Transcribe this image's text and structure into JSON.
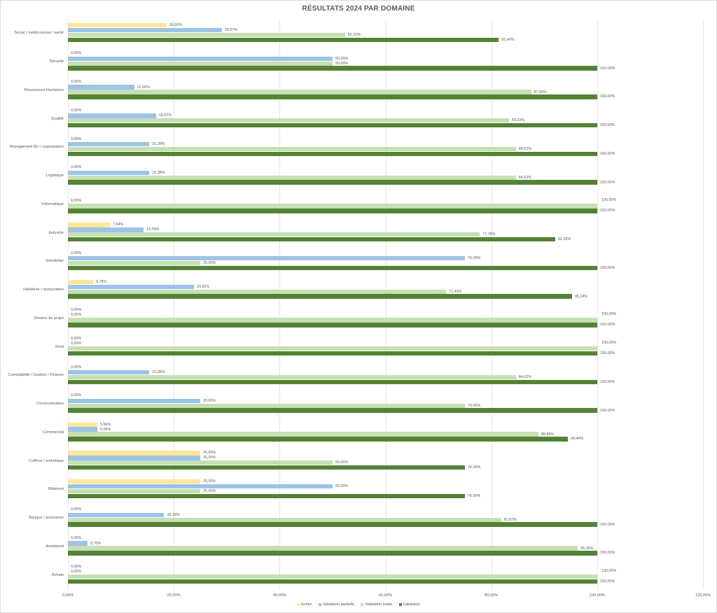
{
  "chart_data": {
    "type": "bar",
    "orientation": "horizontal",
    "title": "RÉSULTATS 2024 PAR DOMAINE",
    "xlabel": "",
    "ylabel": "",
    "xlim": [
      0,
      120
    ],
    "x_ticks": [
      "0,00%",
      "20,00%",
      "40,00%",
      "60,00%",
      "80,00%",
      "100,00%",
      "120,00%"
    ],
    "grid": true,
    "legend_position": "bottom",
    "categories": [
      "Social / médicosocial / santé",
      "Sécurité",
      "Ressources Humaines",
      "Qualité",
      "Management BU / organisation",
      "Logistique",
      "Informatique",
      "Industrie",
      "Immobilier",
      "Hôtellerie / restauration",
      "Gestion de projet",
      "Droit",
      "Comptabilité / Gestion / Finance",
      "Communication",
      "Commercial",
      "Coiffure / esthétique",
      "Bâtiment",
      "Banque / assurance",
      "Assistanat",
      "Achats"
    ],
    "series": [
      {
        "name": "Echec",
        "color": "#ffe699",
        "values": [
          18.6,
          0,
          0,
          0,
          0,
          0,
          0,
          7.94,
          0,
          4.76,
          0,
          0,
          0,
          0,
          5.56,
          25.0,
          25.0,
          0,
          0,
          0
        ],
        "labels": [
          "18,60%",
          "0,00%",
          "0,00%",
          "0,00%",
          "0,00%",
          "0,00%",
          "",
          "7,94%",
          "0,00%",
          "4,76%",
          "0,00%",
          "0,00%",
          "0,00%",
          "0,00%",
          "5,56%",
          "25,00%",
          "25,00%",
          "0,00%",
          "0,00%",
          "0,00%"
        ]
      },
      {
        "name": "Validation partielle",
        "color": "#9dc3e6",
        "values": [
          29.07,
          50.0,
          12.5,
          16.67,
          15.38,
          15.38,
          0,
          14.29,
          75.0,
          23.81,
          0,
          0,
          15.38,
          25.0,
          5.56,
          25.0,
          50.0,
          18.18,
          3.7,
          0
        ],
        "labels": [
          "29,07%",
          "50,00%",
          "12,50%",
          "16,67%",
          "15,38%",
          "15,38%",
          "0,00%",
          "14,29%",
          "75,00%",
          "23,81%",
          "0,00%",
          "0,00%",
          "15,38%",
          "25,00%",
          "5,56%",
          "25,00%",
          "50,00%",
          "18,18%",
          "3,70%",
          "0,00%"
        ]
      },
      {
        "name": "Validation totale",
        "color": "#c5e0b4",
        "values": [
          52.33,
          50.0,
          87.5,
          83.33,
          84.62,
          84.62,
          100.0,
          77.78,
          25.0,
          71.43,
          100.0,
          100.0,
          84.62,
          75.0,
          88.89,
          50.0,
          25.0,
          81.82,
          96.3,
          100.0
        ],
        "labels": [
          "52,33%",
          "50,00%",
          "87,50%",
          "83,33%",
          "84,62%",
          "84,62%",
          "100,00%",
          "77,78%",
          "25,00%",
          "71,43%",
          "100,00%",
          "100,00%",
          "84,62%",
          "75,00%",
          "88,89%",
          "50,00%",
          "25,00%",
          "81,82%",
          "96,30%",
          "100,00%"
        ]
      },
      {
        "name": "Validation",
        "color": "#548235",
        "values": [
          81.4,
          100.0,
          100.0,
          100.0,
          100.0,
          100.0,
          100.0,
          92.06,
          100.0,
          95.24,
          100.0,
          100.0,
          100.0,
          100.0,
          94.44,
          75.0,
          75.0,
          100.0,
          100.0,
          100.0
        ],
        "labels": [
          "81,40%",
          "100,00%",
          "100,00%",
          "100,00%",
          "100,00%",
          "100,00%",
          "100,00%",
          "92,06%",
          "100,00%",
          "95,24%",
          "100,00%",
          "100,00%",
          "100,00%",
          "100,00%",
          "94,44%",
          "75,00%",
          "75,00%",
          "100,00%",
          "100,00%",
          "100,00%"
        ]
      }
    ]
  },
  "legend": {
    "items": [
      {
        "label": "Echec",
        "color": "#ffe699"
      },
      {
        "label": "Validation partielle",
        "color": "#9dc3e6"
      },
      {
        "label": "Validation totale",
        "color": "#c5e0b4"
      },
      {
        "label": "Validation",
        "color": "#548235"
      }
    ]
  }
}
